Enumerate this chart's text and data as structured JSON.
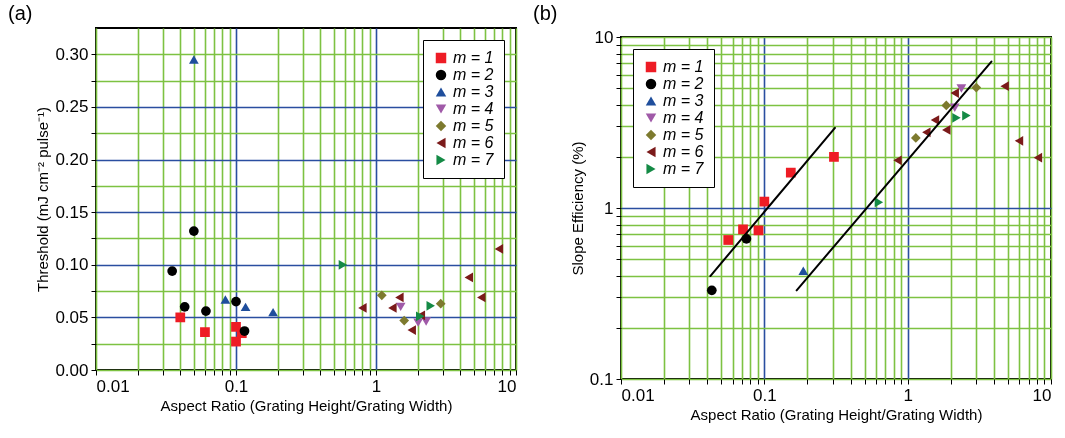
{
  "chart_data": [
    {
      "type": "scatter",
      "title": "(a)",
      "xlabel": "Aspect Ratio (Grating Height/Grating Width)",
      "ylabel": "Threshold (mJ cm⁻² pulse⁻¹)",
      "log": "x",
      "grid": true,
      "legend": "top right",
      "xlim": [
        0.01,
        10
      ],
      "ylim": [
        0,
        0.325
      ],
      "xticks": [
        0.01,
        {
          "value": 0.02,
          "label": null
        },
        {
          "value": 0.03,
          "label": null
        },
        {
          "value": 0.04,
          "label": null
        },
        {
          "value": 0.05,
          "label": null
        },
        {
          "value": 0.06,
          "label": null
        },
        {
          "value": 0.07,
          "label": null
        },
        {
          "value": 0.08,
          "label": null
        },
        {
          "value": 0.09,
          "label": null
        },
        0.1,
        {
          "value": 0.2,
          "label": null
        },
        {
          "value": 0.3,
          "label": null
        },
        {
          "value": 0.4,
          "label": null
        },
        {
          "value": 0.5,
          "label": null
        },
        {
          "value": 0.6,
          "label": null
        },
        {
          "value": 0.7,
          "label": null
        },
        {
          "value": 0.8,
          "label": null
        },
        {
          "value": 0.9,
          "label": null
        },
        1,
        {
          "value": 2,
          "label": null
        },
        {
          "value": 3,
          "label": null
        },
        {
          "value": 4,
          "label": null
        },
        {
          "value": 5,
          "label": null
        },
        {
          "value": 6,
          "label": null
        },
        {
          "value": 7,
          "label": null
        },
        {
          "value": 8,
          "label": null
        },
        {
          "value": 9,
          "label": null
        },
        10
      ],
      "yticks": [
        {
          "value": 0,
          "label": "0.00"
        },
        {
          "value": 0.025,
          "label": null
        },
        0.05,
        {
          "value": 0.075,
          "label": null
        },
        {
          "value": 0.1,
          "label": "0.10"
        },
        {
          "value": 0.125,
          "label": null
        },
        0.15,
        {
          "value": 0.175,
          "label": null
        },
        {
          "value": 0.2,
          "label": "0.20"
        },
        {
          "value": 0.225,
          "label": null
        },
        0.25,
        {
          "value": 0.275,
          "label": null
        },
        {
          "value": 0.3,
          "label": "0.30"
        }
      ],
      "series": [
        {
          "name": "m = 1",
          "color": "#ee1c25",
          "marker": "square",
          "x": [
            0.04,
            0.06,
            0.1,
            0.1,
            0.11
          ],
          "values": [
            0.05,
            0.036,
            0.041,
            0.027,
            0.035
          ]
        },
        {
          "name": "m = 2",
          "color": "#000000",
          "marker": "circle",
          "x": [
            0.05,
            0.035,
            0.043,
            0.061,
            0.1,
            0.115
          ],
          "values": [
            0.132,
            0.094,
            0.06,
            0.056,
            0.065,
            0.037
          ]
        },
        {
          "name": "m = 3",
          "color": "#1f4e9c",
          "marker": "triangle",
          "x": [
            0.05,
            0.084,
            0.117,
            0.184
          ],
          "values": [
            0.295,
            0.067,
            0.06,
            0.055
          ]
        },
        {
          "name": "m = 4",
          "color": "#a05aa8",
          "marker": "triangle-down",
          "x": [
            1.5,
            2.0,
            2.28
          ],
          "values": [
            0.06,
            0.045,
            0.046
          ]
        },
        {
          "name": "m = 5",
          "color": "#7d7a2e",
          "marker": "diamond",
          "x": [
            1.1,
            1.59,
            2.9
          ],
          "values": [
            0.071,
            0.047,
            0.063
          ]
        },
        {
          "name": "m = 6",
          "color": "#7b1a1a",
          "marker": "triangle-left",
          "x": [
            0.8,
            1.31,
            1.47,
            1.8,
            2.09,
            4.6,
            5.65,
            7.55
          ],
          "values": [
            0.059,
            0.059,
            0.069,
            0.038,
            0.052,
            0.088,
            0.069,
            0.115
          ]
        },
        {
          "name": "m = 7",
          "color": "#148a45",
          "marker": "triangle-right",
          "x": [
            0.58,
            2.46,
            2.07
          ],
          "values": [
            0.1,
            0.061,
            0.051
          ]
        }
      ]
    },
    {
      "type": "scatter",
      "title": "(b)",
      "xlabel": "Aspect Ratio (Grating Height/Grating Width)",
      "ylabel": "Slope Efficiency (%)",
      "log": "xy",
      "grid": true,
      "legend": "top left",
      "xlim": [
        0.01,
        10
      ],
      "ylim": [
        0.1,
        10
      ],
      "xticks": [
        0.01,
        {
          "value": 0.02,
          "label": null
        },
        {
          "value": 0.03,
          "label": null
        },
        {
          "value": 0.04,
          "label": null
        },
        {
          "value": 0.05,
          "label": null
        },
        {
          "value": 0.06,
          "label": null
        },
        {
          "value": 0.07,
          "label": null
        },
        {
          "value": 0.08,
          "label": null
        },
        {
          "value": 0.09,
          "label": null
        },
        0.1,
        {
          "value": 0.2,
          "label": null
        },
        {
          "value": 0.3,
          "label": null
        },
        {
          "value": 0.4,
          "label": null
        },
        {
          "value": 0.5,
          "label": null
        },
        {
          "value": 0.6,
          "label": null
        },
        {
          "value": 0.7,
          "label": null
        },
        {
          "value": 0.8,
          "label": null
        },
        {
          "value": 0.9,
          "label": null
        },
        1,
        {
          "value": 2,
          "label": null
        },
        {
          "value": 3,
          "label": null
        },
        {
          "value": 4,
          "label": null
        },
        {
          "value": 5,
          "label": null
        },
        {
          "value": 6,
          "label": null
        },
        {
          "value": 7,
          "label": null
        },
        {
          "value": 8,
          "label": null
        },
        {
          "value": 9,
          "label": null
        },
        10
      ],
      "yticks": [
        0.1,
        {
          "value": 0.2,
          "label": null
        },
        {
          "value": 0.3,
          "label": null
        },
        {
          "value": 0.4,
          "label": null
        },
        {
          "value": 0.5,
          "label": null
        },
        {
          "value": 0.6,
          "label": null
        },
        {
          "value": 0.7,
          "label": null
        },
        {
          "value": 0.8,
          "label": null
        },
        {
          "value": 0.9,
          "label": null
        },
        1,
        {
          "value": 2,
          "label": null
        },
        {
          "value": 3,
          "label": null
        },
        {
          "value": 4,
          "label": null
        },
        {
          "value": 5,
          "label": null
        },
        {
          "value": 6,
          "label": null
        },
        {
          "value": 7,
          "label": null
        },
        {
          "value": 8,
          "label": null
        },
        {
          "value": 9,
          "label": null
        },
        10
      ],
      "series": [
        {
          "name": "m = 1",
          "color": "#ee1c25",
          "marker": "square",
          "x": [
            0.056,
            0.071,
            0.091,
            0.1,
            0.153,
            0.306
          ],
          "values": [
            0.65,
            0.75,
            0.74,
            1.09,
            1.61,
            1.99
          ]
        },
        {
          "name": "m = 2",
          "color": "#000000",
          "marker": "circle",
          "x": [
            0.043,
            0.075
          ],
          "values": [
            0.33,
            0.66
          ]
        },
        {
          "name": "m = 3",
          "color": "#1f4e9c",
          "marker": "triangle",
          "x": [
            0.187
          ],
          "values": [
            0.43
          ]
        },
        {
          "name": "m = 4",
          "color": "#a05aa8",
          "marker": "triangle-down",
          "x": [
            2.37,
            2.13
          ],
          "values": [
            5.0,
            3.86
          ]
        },
        {
          "name": "m = 5",
          "color": "#7d7a2e",
          "marker": "diamond",
          "x": [
            1.14,
            1.86,
            3.01
          ],
          "values": [
            2.57,
            3.98,
            5.06
          ]
        },
        {
          "name": "m = 6",
          "color": "#7b1a1a",
          "marker": "triangle-left",
          "x": [
            0.85,
            1.35,
            1.55,
            1.86,
            2.13,
            4.75,
            5.98,
            8.1
          ],
          "values": [
            1.9,
            2.77,
            3.27,
            2.86,
            4.7,
            5.16,
            2.47,
            1.97
          ]
        },
        {
          "name": "m = 7",
          "color": "#148a45",
          "marker": "triangle-right",
          "x": [
            0.63,
            2.19,
            2.57
          ],
          "values": [
            1.08,
            3.37,
            3.47
          ]
        },
        {
          "type": "line",
          "color": "#000000",
          "x": [
            0.042,
            0.311
          ],
          "values": [
            0.4,
            2.94
          ]
        },
        {
          "type": "line",
          "color": "#000000",
          "x": [
            0.168,
            3.84
          ],
          "values": [
            0.33,
            7.18
          ]
        }
      ]
    }
  ]
}
